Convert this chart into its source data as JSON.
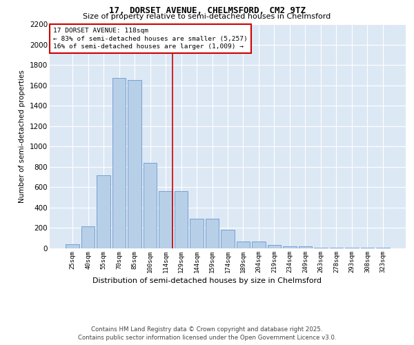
{
  "title": "17, DORSET AVENUE, CHELMSFORD, CM2 9TZ",
  "subtitle": "Size of property relative to semi-detached houses in Chelmsford",
  "xlabel": "Distribution of semi-detached houses by size in Chelmsford",
  "ylabel": "Number of semi-detached properties",
  "bar_labels": [
    "25sqm",
    "40sqm",
    "55sqm",
    "70sqm",
    "85sqm",
    "100sqm",
    "114sqm",
    "129sqm",
    "144sqm",
    "159sqm",
    "174sqm",
    "189sqm",
    "204sqm",
    "219sqm",
    "234sqm",
    "249sqm",
    "263sqm",
    "278sqm",
    "293sqm",
    "308sqm",
    "323sqm"
  ],
  "bar_heights": [
    40,
    220,
    720,
    1670,
    1650,
    840,
    560,
    560,
    290,
    290,
    185,
    65,
    65,
    35,
    20,
    20,
    5,
    5,
    5,
    5,
    5
  ],
  "bar_color": "#b8cfe8",
  "bar_edge_color": "#6699cc",
  "property_line_bin": 6,
  "property_label": "17 DORSET AVENUE: 118sqm",
  "smaller_pct": "83%",
  "smaller_count": "5,257",
  "larger_pct": "16%",
  "larger_count": "1,009",
  "vline_color": "#cc0000",
  "annotation_box_color": "#cc0000",
  "ylim": [
    0,
    2200
  ],
  "yticks": [
    0,
    200,
    400,
    600,
    800,
    1000,
    1200,
    1400,
    1600,
    1800,
    2000,
    2200
  ],
  "background_color": "#dde8f5",
  "footer1": "Contains HM Land Registry data © Crown copyright and database right 2025.",
  "footer2": "Contains public sector information licensed under the Open Government Licence v3.0."
}
